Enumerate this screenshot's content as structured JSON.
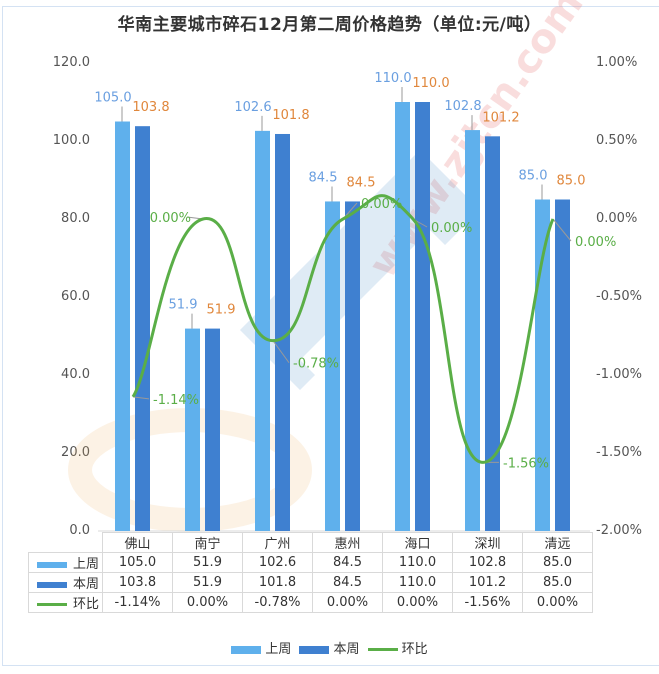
{
  "title": "华南主要城市碎石12月第二周价格趋势（单位:元/吨）",
  "colors": {
    "last_week": "#5fb0ec",
    "this_week": "#3f80d0",
    "change": "#5aae47",
    "last_week_label": "#6a9fe0",
    "this_week_label": "#e0873c",
    "change_label": "#5aae47"
  },
  "left_axis_ticks": [
    "120.0",
    "100.0",
    "80.0",
    "60.0",
    "40.0",
    "20.0",
    "0.0"
  ],
  "right_axis_ticks": [
    "1.00%",
    "0.50%",
    "0.00%",
    "-0.50%",
    "-1.00%",
    "-1.50%",
    "-2.00%"
  ],
  "table": {
    "headers": [
      "佛山",
      "南宁",
      "广州",
      "惠州",
      "海口",
      "深圳",
      "清远"
    ],
    "rows": [
      {
        "key": "上周",
        "values": [
          "105.0",
          "51.9",
          "102.6",
          "84.5",
          "110.0",
          "102.8",
          "85.0"
        ]
      },
      {
        "key": "本周",
        "values": [
          "103.8",
          "51.9",
          "101.8",
          "84.5",
          "110.0",
          "101.2",
          "85.0"
        ]
      },
      {
        "key": "环比",
        "values": [
          "-1.14%",
          "0.00%",
          "-0.78%",
          "0.00%",
          "0.00%",
          "-1.56%",
          "0.00%"
        ]
      }
    ]
  },
  "legend": [
    {
      "label": "上周",
      "type": "bar"
    },
    {
      "label": "本周",
      "type": "bar"
    },
    {
      "label": "环比",
      "type": "line"
    }
  ],
  "watermark": "www.zjtcn.com",
  "chart_data": {
    "type": "bar",
    "title": "华南主要城市碎石12月第二周价格趋势（单位:元/吨）",
    "categories": [
      "佛山",
      "南宁",
      "广州",
      "惠州",
      "海口",
      "深圳",
      "清远"
    ],
    "series": [
      {
        "name": "上周",
        "type": "bar",
        "axis": "left",
        "values": [
          105.0,
          51.9,
          102.6,
          84.5,
          110.0,
          102.8,
          85.0
        ]
      },
      {
        "name": "本周",
        "type": "bar",
        "axis": "left",
        "values": [
          103.8,
          51.9,
          101.8,
          84.5,
          110.0,
          101.2,
          85.0
        ]
      },
      {
        "name": "环比",
        "type": "line",
        "axis": "right",
        "unit": "%",
        "values": [
          -1.14,
          0.0,
          -0.78,
          0.0,
          0.0,
          -1.56,
          0.0
        ]
      }
    ],
    "xlabel": "",
    "ylabel": "",
    "ylim": [
      0,
      120
    ],
    "y2lim": [
      -2.0,
      1.0
    ],
    "yticks": [
      0,
      20,
      40,
      60,
      80,
      100,
      120
    ],
    "y2ticks": [
      -2.0,
      -1.5,
      -1.0,
      -0.5,
      0.0,
      0.5,
      1.0
    ],
    "grid": false,
    "legend_position": "bottom",
    "data_table": true
  }
}
